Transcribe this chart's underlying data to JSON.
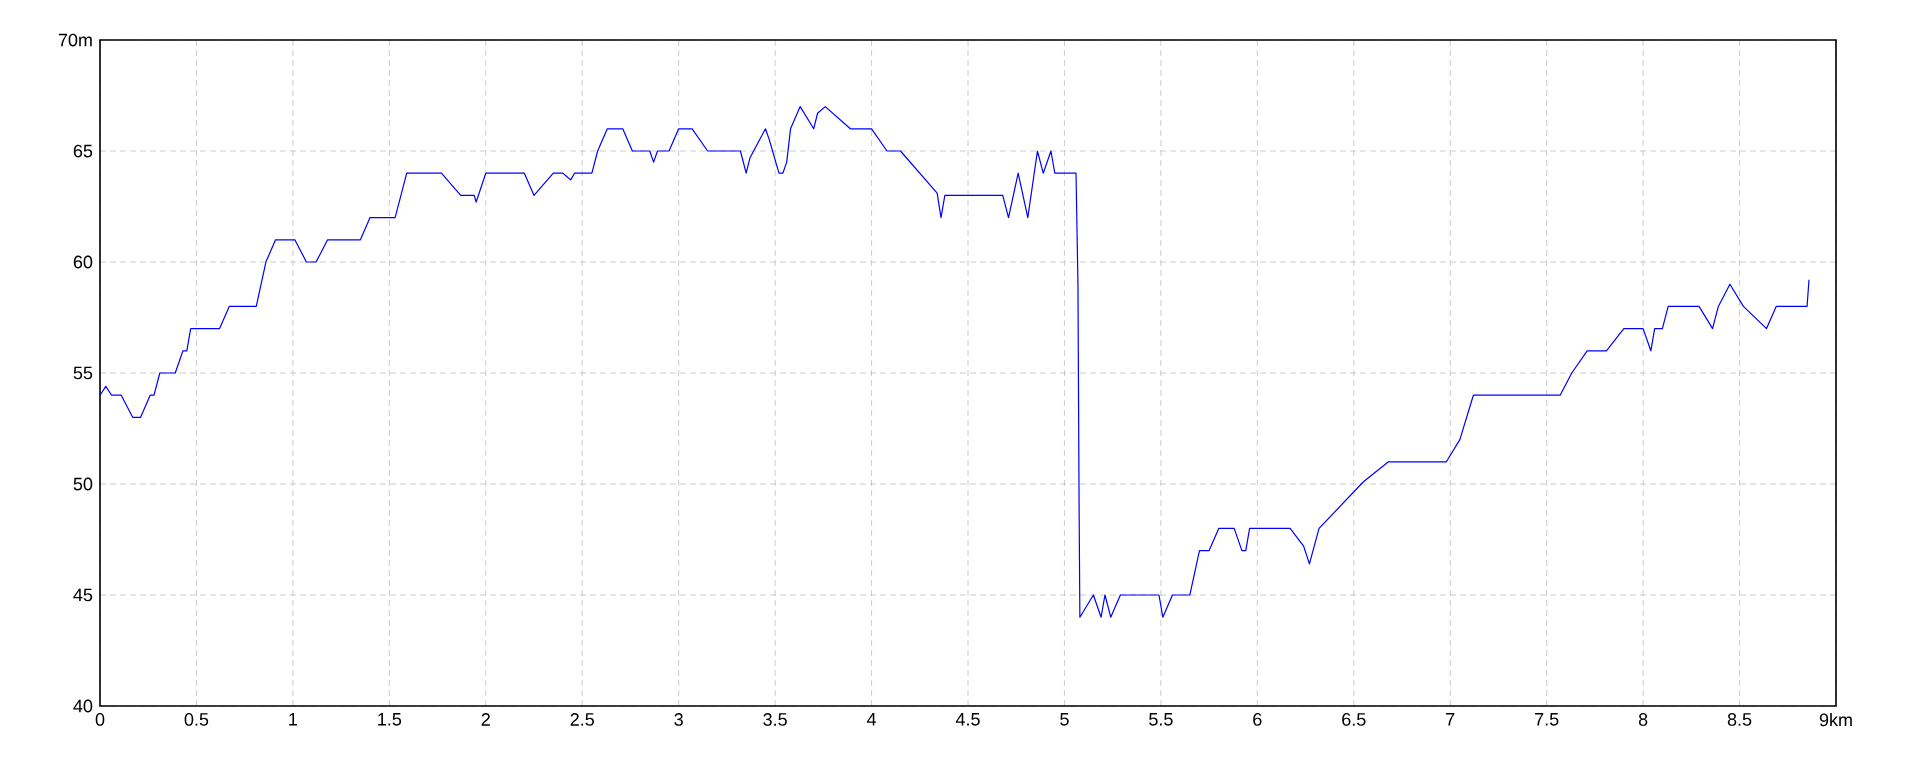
{
  "chart_data": {
    "type": "line",
    "x": [
      0,
      0.03,
      0.06,
      0.11,
      0.17,
      0.21,
      0.26,
      0.28,
      0.31,
      0.39,
      0.43,
      0.45,
      0.47,
      0.62,
      0.67,
      0.81,
      0.86,
      0.91,
      1.01,
      1.07,
      1.12,
      1.18,
      1.35,
      1.4,
      1.53,
      1.59,
      1.77,
      1.87,
      1.94,
      1.95,
      2.0,
      2.2,
      2.25,
      2.35,
      2.4,
      2.44,
      2.46,
      2.55,
      2.58,
      2.63,
      2.71,
      2.76,
      2.85,
      2.87,
      2.89,
      2.95,
      3.0,
      3.07,
      3.15,
      3.32,
      3.35,
      3.37,
      3.45,
      3.47,
      3.52,
      3.54,
      3.56,
      3.58,
      3.63,
      3.7,
      3.72,
      3.76,
      3.89,
      4.0,
      4.08,
      4.15,
      4.34,
      4.36,
      4.38,
      4.68,
      4.71,
      4.76,
      4.81,
      4.86,
      4.89,
      4.93,
      4.95,
      5.06,
      5.07,
      5.076,
      5.08,
      5.15,
      5.19,
      5.21,
      5.24,
      5.29,
      5.49,
      5.51,
      5.56,
      5.65,
      5.7,
      5.75,
      5.8,
      5.88,
      5.92,
      5.94,
      5.96,
      6.17,
      6.24,
      6.27,
      6.32,
      6.55,
      6.68,
      6.98,
      7.05,
      7.12,
      7.57,
      7.63,
      7.71,
      7.81,
      7.9,
      8.0,
      8.04,
      8.06,
      8.1,
      8.13,
      8.29,
      8.36,
      8.39,
      8.45,
      8.52,
      8.64,
      8.69,
      8.85,
      8.86
    ],
    "series": [
      {
        "color": "#0000ff",
        "values": [
          54,
          54.4,
          54,
          54,
          53,
          53,
          54,
          54,
          55,
          55,
          56,
          56,
          57,
          57,
          58,
          58,
          60,
          61,
          61,
          60,
          60,
          61,
          61,
          62,
          62,
          64,
          64,
          63,
          63,
          62.7,
          64,
          64,
          63,
          64,
          64,
          63.7,
          64,
          64,
          65,
          66,
          66,
          65,
          65,
          64.5,
          65,
          65,
          66,
          66,
          65,
          65,
          64,
          64.7,
          66,
          65.5,
          64,
          64,
          64.5,
          66,
          67,
          66,
          66.7,
          67,
          66,
          66,
          65,
          65,
          63.1,
          62,
          63,
          63,
          62,
          64,
          62,
          65,
          64,
          65,
          64,
          64,
          59,
          49,
          44,
          45,
          44,
          45,
          44,
          45,
          45,
          44,
          45,
          45,
          47,
          47,
          48,
          48,
          47,
          47,
          48,
          48,
          47.2,
          46.4,
          48,
          50.1,
          51,
          51,
          52,
          54,
          54,
          55,
          56,
          56,
          57,
          57,
          56,
          57,
          57,
          58,
          58,
          57,
          58,
          59,
          58,
          57,
          58,
          58,
          59.2
        ]
      }
    ],
    "xlim": [
      0,
      9
    ],
    "ylim": [
      40,
      70
    ],
    "xticks": [
      0,
      0.5,
      1,
      1.5,
      2,
      2.5,
      3,
      3.5,
      4,
      4.5,
      5,
      5.5,
      6,
      6.5,
      7,
      7.5,
      8,
      8.5,
      {
        "value": 9,
        "label": "9km"
      }
    ],
    "yticks": [
      40,
      45,
      50,
      55,
      60,
      65,
      {
        "value": 70,
        "label": "70m"
      }
    ],
    "grid": true,
    "marker": "none",
    "line_style": "solid"
  }
}
